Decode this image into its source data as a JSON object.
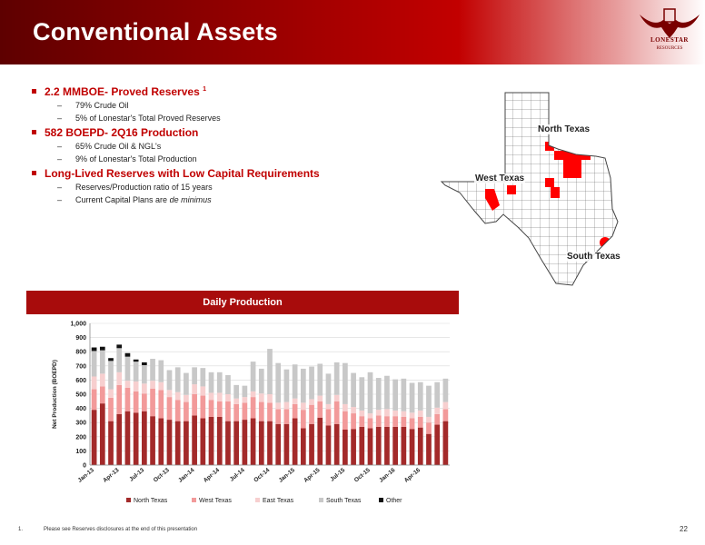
{
  "header": {
    "title": "Conventional Assets"
  },
  "logo": {
    "name": "LONESTAR",
    "subtitle": "RESOURCES"
  },
  "bullets": [
    {
      "text": "2.2 MMBOE- Proved Reserves",
      "sup": "1",
      "subs": [
        {
          "text": "79% Crude Oil"
        },
        {
          "text": "5% of Lonestar's Total Proved Reserves"
        }
      ]
    },
    {
      "text": "582 BOEPD- 2Q16 Production",
      "subs": [
        {
          "text": "65% Crude Oil & NGL's"
        },
        {
          "text": "9% of Lonestar's Total Production"
        }
      ]
    },
    {
      "text": "Long-Lived Reserves with Low Capital Requirements",
      "subs": [
        {
          "text": "Reserves/Production ratio of 15 years"
        },
        {
          "text": "Current Capital Plans are ",
          "italic": "de minimus"
        }
      ]
    }
  ],
  "map": {
    "labels": {
      "north": "North Texas",
      "west": "West Texas",
      "south": "South Texas"
    },
    "colors": {
      "highlight": "#ff0000",
      "county_fill": "#ffffff",
      "county_line": "#555555"
    }
  },
  "chart_title": "Daily Production",
  "footnote": {
    "num": "1.",
    "text": "Please see Reserves disclosures at the end of this presentation"
  },
  "page_number": "22",
  "chart_data": {
    "type": "bar",
    "stacked": true,
    "ylabel": "Net Production (BOEPD)",
    "ylim": [
      0,
      1000
    ],
    "yticks": [
      "0",
      "100",
      "200",
      "300",
      "400",
      "500",
      "600",
      "700",
      "800",
      "900",
      "1,000"
    ],
    "tick_labels": [
      "Jan-13",
      "Apr-13",
      "Jul-13",
      "Oct-13",
      "Jan-14",
      "Apr-14",
      "Jul-14",
      "Oct-14",
      "Jan-15",
      "Apr-15",
      "Jul-15",
      "Oct-15",
      "Jan-16",
      "Apr-16"
    ],
    "tick_every": 3,
    "grid": true,
    "legend_position": "bottom",
    "series": [
      {
        "name": "North Texas",
        "color": "#a32a2a",
        "values": [
          390,
          435,
          310,
          360,
          380,
          370,
          380,
          345,
          330,
          320,
          310,
          310,
          350,
          330,
          340,
          340,
          310,
          310,
          320,
          330,
          310,
          310,
          290,
          290,
          330,
          260,
          290,
          335,
          280,
          290,
          250,
          255,
          270,
          260,
          270,
          270,
          270,
          270,
          255,
          265,
          220,
          285,
          310
        ]
      },
      {
        "name": "West Texas",
        "color": "#f29a9a",
        "values": [
          145,
          120,
          165,
          205,
          165,
          150,
          125,
          195,
          200,
          160,
          150,
          135,
          150,
          160,
          120,
          110,
          140,
          120,
          120,
          150,
          135,
          130,
          105,
          105,
          100,
          130,
          135,
          115,
          115,
          160,
          130,
          110,
          75,
          70,
          80,
          75,
          75,
          70,
          75,
          75,
          80,
          75,
          85
        ]
      },
      {
        "name": "East Texas",
        "color": "#f7cfcf",
        "values": [
          90,
          90,
          60,
          90,
          50,
          70,
          70,
          55,
          55,
          50,
          55,
          50,
          70,
          65,
          50,
          60,
          50,
          40,
          40,
          40,
          60,
          60,
          45,
          50,
          40,
          50,
          40,
          40,
          35,
          45,
          50,
          45,
          40,
          35,
          40,
          50,
          40,
          40,
          40,
          45,
          40,
          45,
          50
        ]
      },
      {
        "name": "South Texas",
        "color": "#c8c8c8",
        "values": [
          180,
          165,
          200,
          170,
          170,
          140,
          130,
          155,
          155,
          140,
          175,
          155,
          120,
          130,
          145,
          145,
          135,
          95,
          80,
          210,
          175,
          320,
          280,
          230,
          240,
          240,
          230,
          225,
          215,
          230,
          290,
          240,
          235,
          290,
          225,
          235,
          220,
          230,
          210,
          200,
          220,
          180,
          165
        ]
      },
      {
        "name": "Other",
        "color": "#111111",
        "values": [
          25,
          25,
          20,
          25,
          25,
          15,
          20,
          0,
          0,
          0,
          0,
          0,
          0,
          0,
          0,
          0,
          0,
          0,
          0,
          0,
          0,
          0,
          0,
          0,
          0,
          0,
          0,
          0,
          0,
          0,
          0,
          0,
          0,
          0,
          0,
          0,
          0,
          0,
          0,
          0,
          0,
          0,
          0
        ]
      }
    ]
  }
}
